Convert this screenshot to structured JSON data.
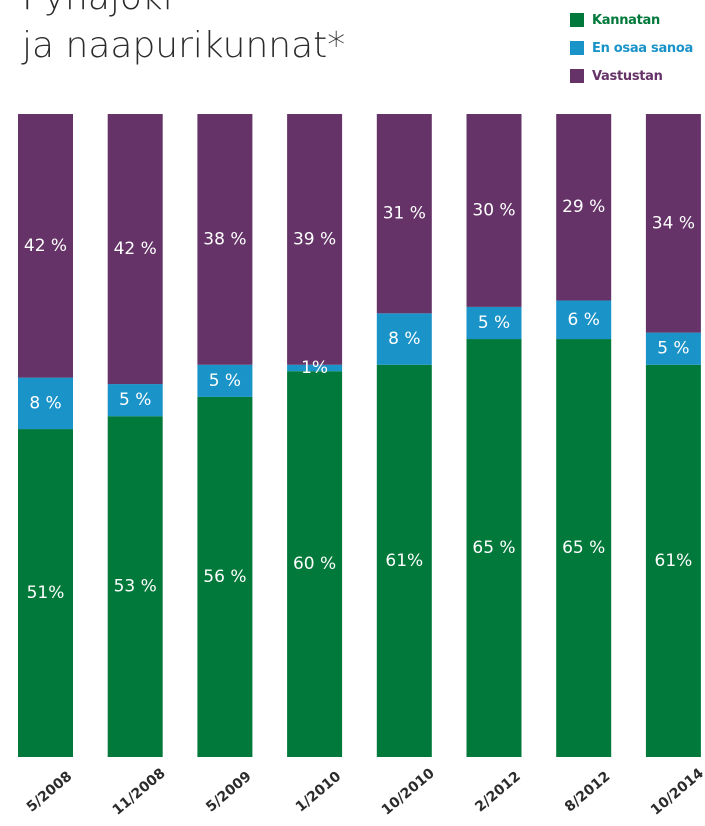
{
  "title_lines": [
    "Pyhäjoki",
    "ja naapurikunnat*"
  ],
  "chart_data": {
    "type": "bar",
    "stacked": true,
    "title": "Pyhäjoki ja naapurikunnat*",
    "categories": [
      "5/2008",
      "11/2008",
      "5/2009",
      "1/2010",
      "10/2010",
      "2/2012",
      "8/2012",
      "10/2014"
    ],
    "series": [
      {
        "name": "Kannatan",
        "color": "#00793a",
        "values": [
          51,
          53,
          56,
          60,
          61,
          65,
          65,
          61
        ],
        "labels": [
          "51%",
          "53 %",
          "56 %",
          "60 %",
          "61%",
          "65 %",
          "65 %",
          "61%"
        ]
      },
      {
        "name": "En osaa sanoa",
        "color": "#1a93c8",
        "values": [
          8,
          5,
          5,
          1,
          8,
          5,
          6,
          5
        ],
        "labels": [
          "8 %",
          "5 %",
          "5 %",
          "1%",
          "8 %",
          "5 %",
          "6 %",
          "5 %"
        ]
      },
      {
        "name": "Vastustan",
        "color": "#653367",
        "values": [
          42,
          42,
          38,
          39,
          31,
          30,
          29,
          34
        ],
        "labels": [
          "42 %",
          "42 %",
          "38 %",
          "39 %",
          "31 %",
          "30 %",
          "29 %",
          "34 %"
        ]
      }
    ],
    "legend_position": "top-right",
    "grid": false
  }
}
